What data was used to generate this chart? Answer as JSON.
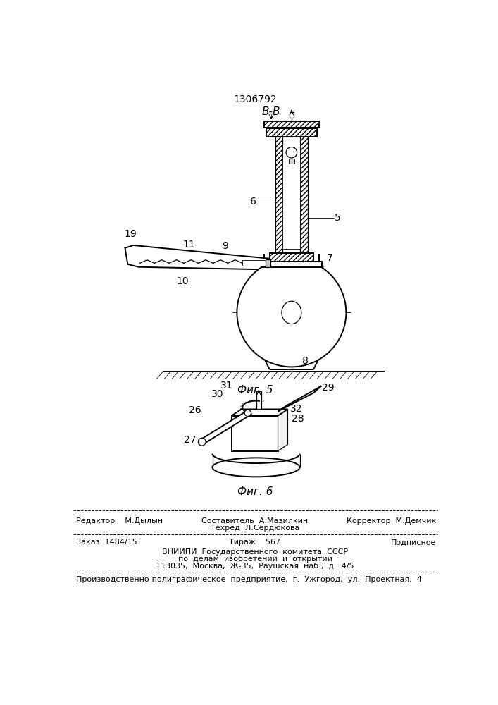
{
  "patent_number": "1306792",
  "bg_color": "#ffffff",
  "section_label": "В-В",
  "fig5_label": "Фиг. 5",
  "fig6_label": "Фиг. 6",
  "footer": {
    "editor": "Редактор    М.Дылын",
    "compiler": "Составитель  А.Мазилкин",
    "techred": "Техред  Л.Сердюкова",
    "corrector": "Корректор  М.Демчик",
    "order": "Заказ  1484/15",
    "tirazh": "Тираж    567",
    "podpisnoe": "Подписное",
    "vniiipi1": "ВНИИПИ  Государственного  комитета  СССР",
    "vniiipi2": "по  делам  изобретений  и  открытий",
    "vniiipi3": "113035,  Москва,  Ж-35,  Раушская  наб.,  д.  4/5",
    "production": "Производственно-полиграфическое  предприятие,  г.  Ужгород,  ул.  Проектная,  4"
  }
}
